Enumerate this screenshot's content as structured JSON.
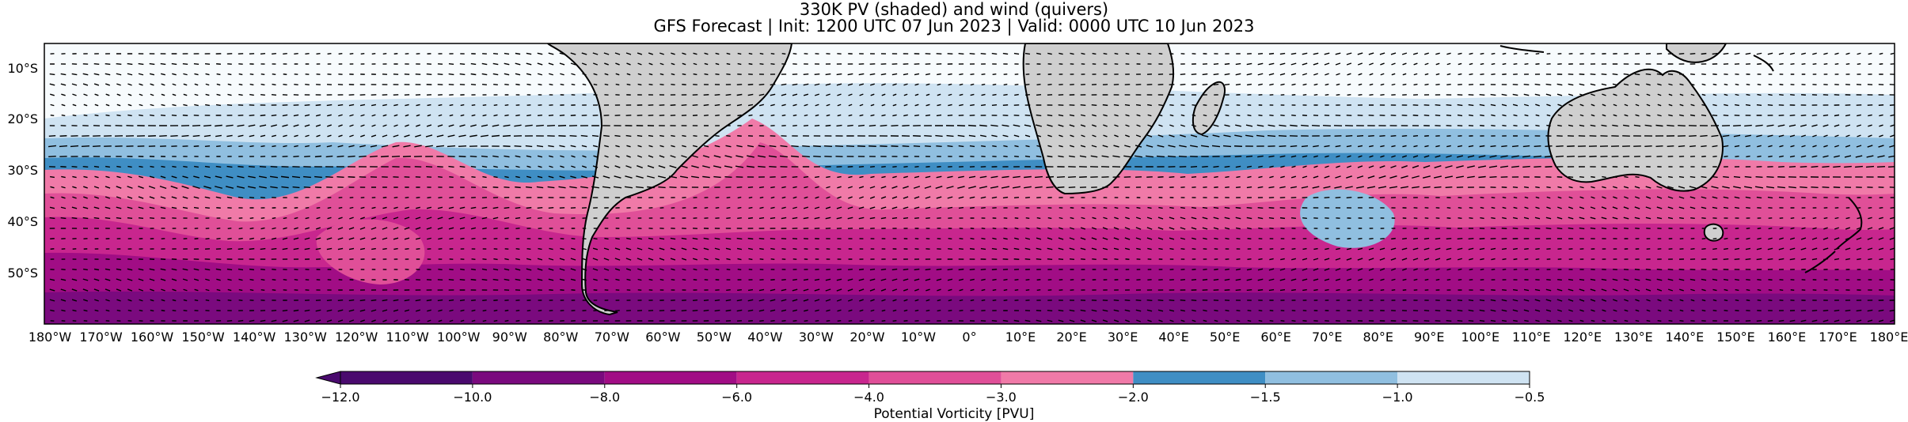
{
  "figure": {
    "title_line1": "330K PV (shaded) and wind (quivers)",
    "title_line2": "GFS Forecast | Init: 1200 UTC 07 Jun 2023 | Valid: 0000 UTC 10 Jun 2023"
  },
  "map": {
    "lon_ticks": [
      "180°W",
      "170°W",
      "160°W",
      "150°W",
      "140°W",
      "130°W",
      "120°W",
      "110°W",
      "100°W",
      "90°W",
      "80°W",
      "70°W",
      "60°W",
      "50°W",
      "40°W",
      "30°W",
      "20°W",
      "10°W",
      "0°",
      "10°E",
      "20°E",
      "30°E",
      "40°E",
      "50°E",
      "60°E",
      "70°E",
      "80°E",
      "90°E",
      "100°E",
      "110°E",
      "120°E",
      "130°E",
      "140°E",
      "150°E",
      "160°E",
      "170°E",
      "180°E"
    ],
    "lat_ticks": [
      "10°S",
      "20°S",
      "30°S",
      "40°S",
      "50°S"
    ],
    "land_color": "#cfcfcf",
    "coast_color": "#000000"
  },
  "colorbar": {
    "label": "Potential Vorticity [PVU]",
    "ticks": [
      "−12.0",
      "−10.0",
      "−8.0",
      "−6.0",
      "−4.0",
      "−3.0",
      "−2.0",
      "−1.5",
      "−1.0",
      "−0.5"
    ],
    "colors": [
      "#4a0a6e",
      "#7a0a7e",
      "#a10d85",
      "#c8268e",
      "#e04f98",
      "#f07aa8",
      "#3f8ec4",
      "#90bfe0",
      "#cfe3f2"
    ],
    "extend": "min"
  }
}
